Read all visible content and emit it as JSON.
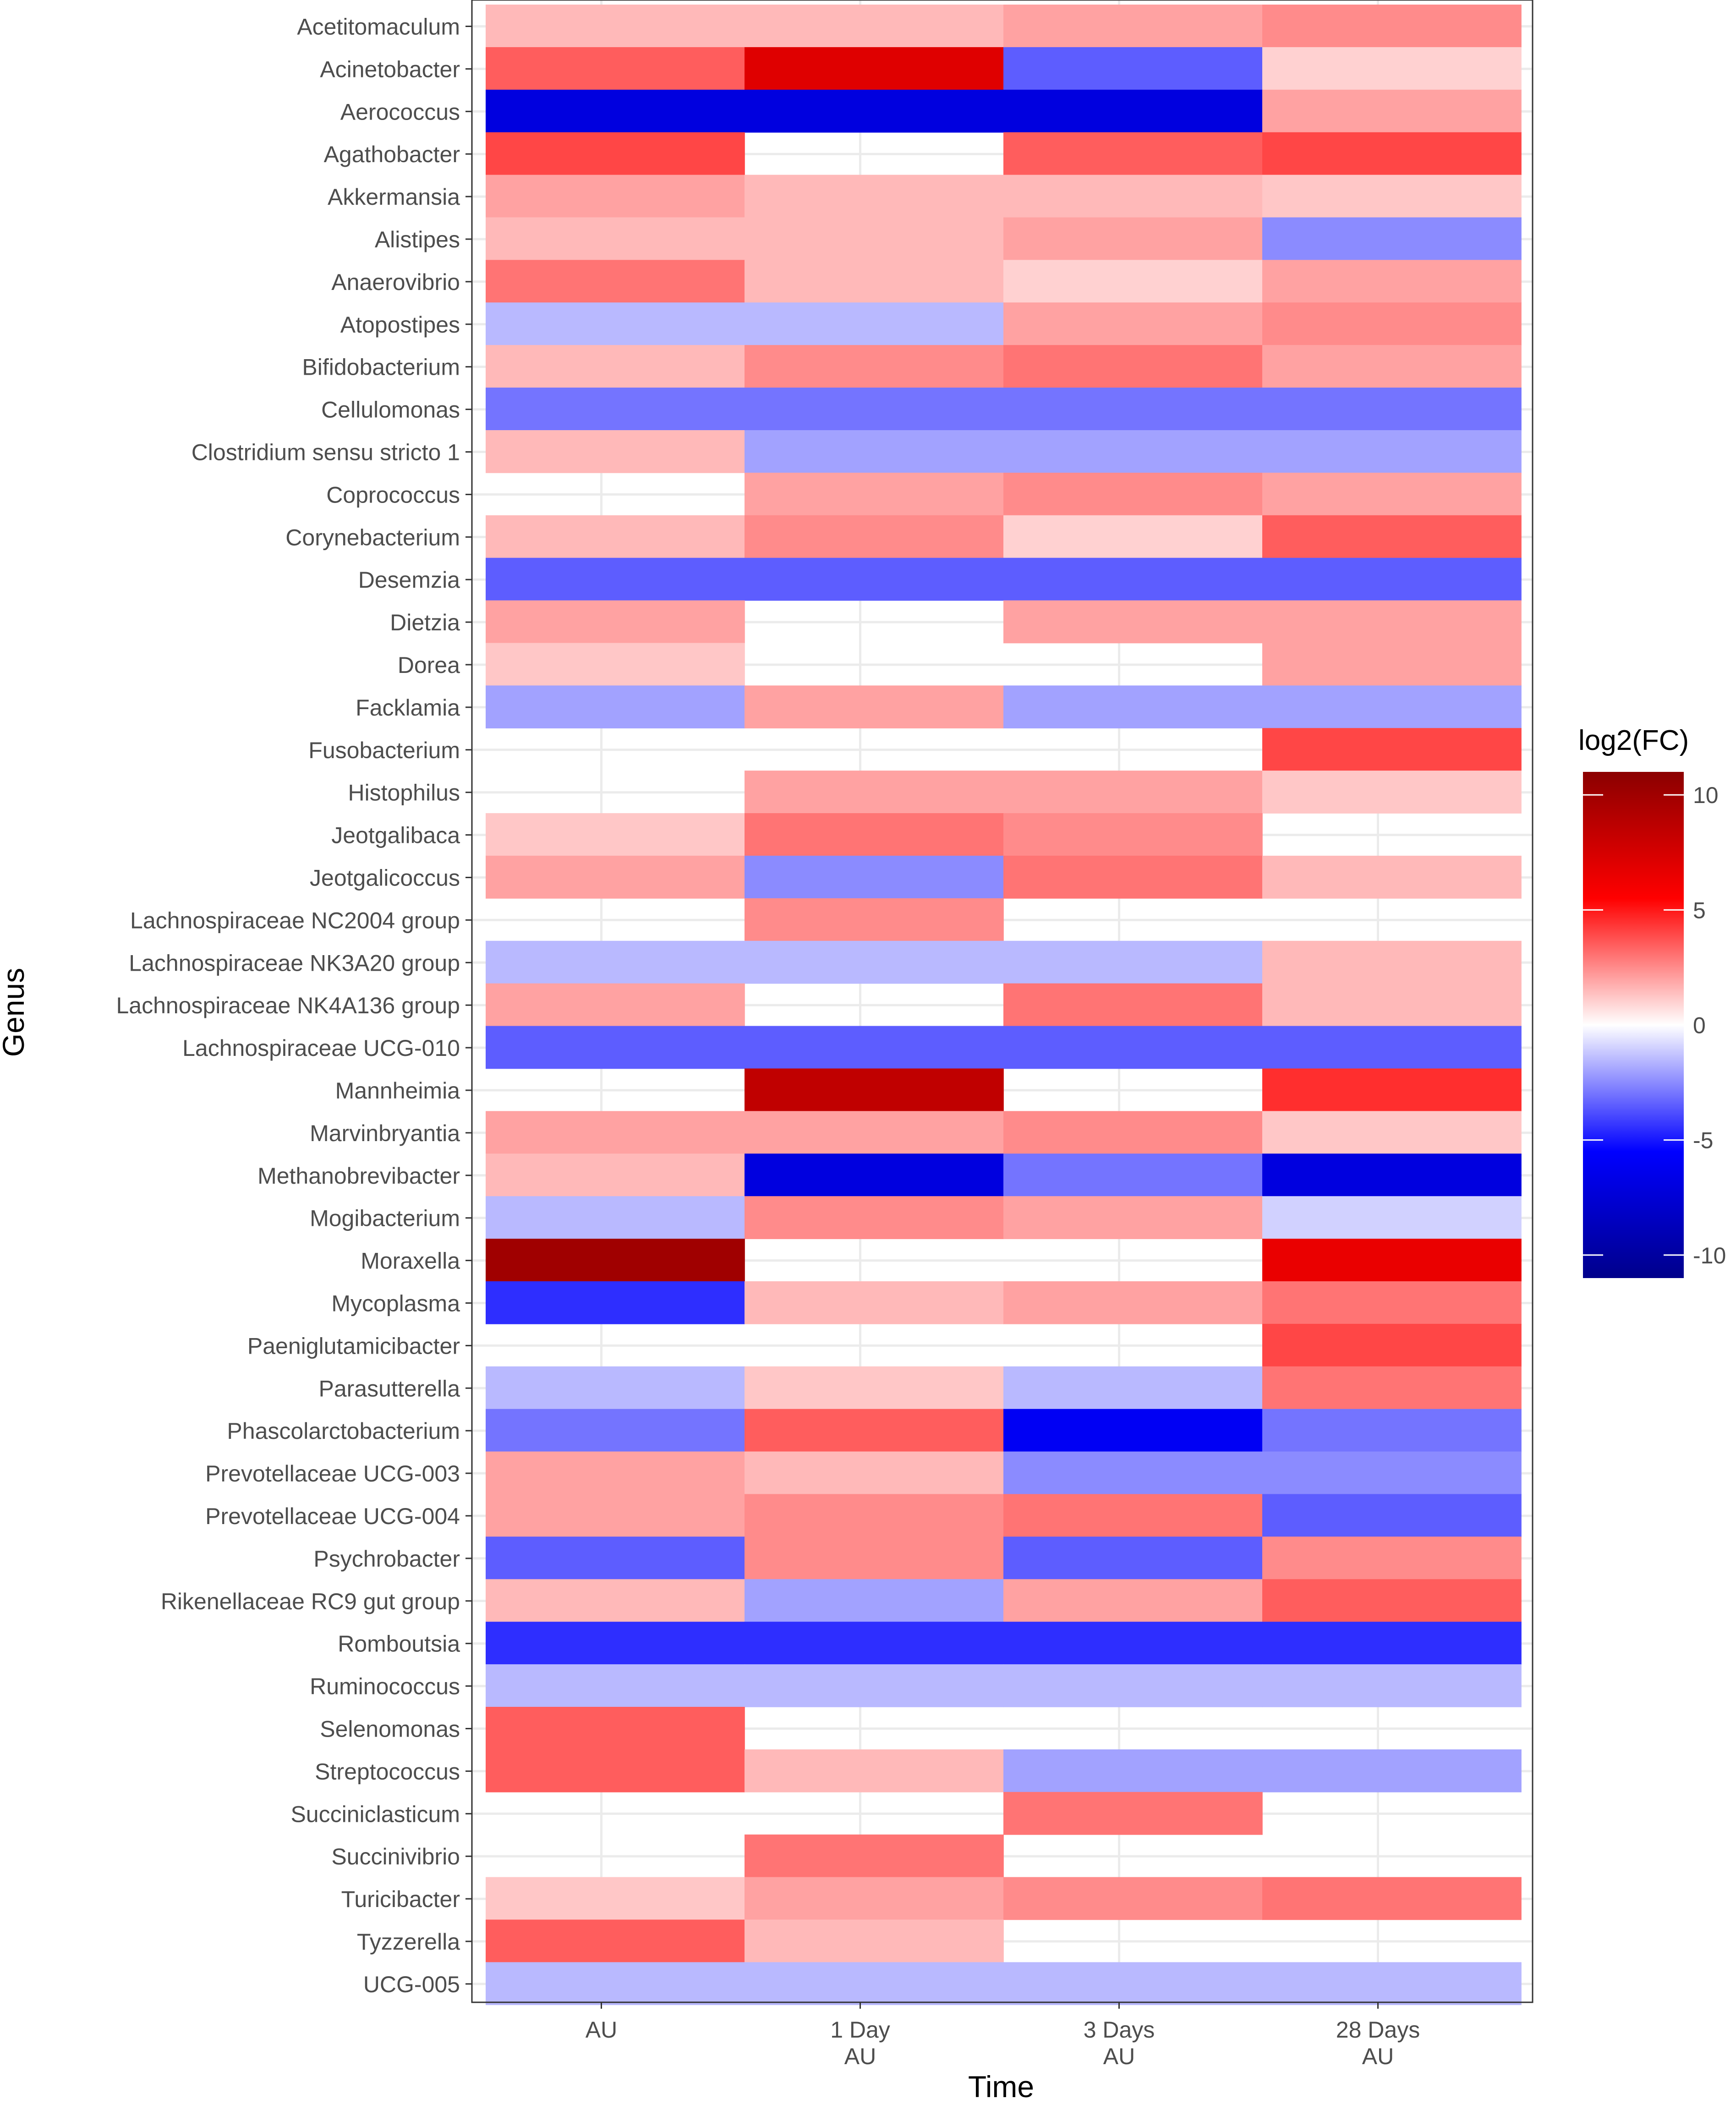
{
  "chart_data": {
    "type": "heatmap",
    "title": "",
    "xlabel": "Time",
    "ylabel": "Genus",
    "x_categories": [
      [
        "AU"
      ],
      [
        "1 Day",
        "AU"
      ],
      [
        "3 Days",
        "AU"
      ],
      [
        "28 Days",
        "AU"
      ]
    ],
    "y_categories": [
      "Acetitomaculum",
      "Acinetobacter",
      "Aerococcus",
      "Agathobacter",
      "Akkermansia",
      "Alistipes",
      "Anaerovibrio",
      "Atopostipes",
      "Bifidobacterium",
      "Cellulomonas",
      "Clostridium sensu stricto 1",
      "Coprococcus",
      "Corynebacterium",
      "Desemzia",
      "Dietzia",
      "Dorea",
      "Facklamia",
      "Fusobacterium",
      "Histophilus",
      "Jeotgalibaca",
      "Jeotgalicoccus",
      "Lachnospiraceae NC2004 group",
      "Lachnospiraceae NK3A20 group",
      "Lachnospiraceae NK4A136 group",
      "Lachnospiraceae UCG-010",
      "Mannheimia",
      "Marvinbryantia",
      "Methanobrevibacter",
      "Mogibacterium",
      "Moraxella",
      "Mycoplasma",
      "Paeniglutamicibacter",
      "Parasutterella",
      "Phascolarctobacterium",
      "Prevotellaceae UCG-003",
      "Prevotellaceae UCG-004",
      "Psychrobacter",
      "Rikenellaceae RC9 gut group",
      "Romboutsia",
      "Ruminococcus",
      "Selenomonas",
      "Streptococcus",
      "Succiniclasticum",
      "Succinivibrio",
      "Turicibacter",
      "Tyzzerella",
      "UCG-005"
    ],
    "values": [
      [
        1.5,
        1.5,
        2.0,
        2.5
      ],
      [
        3.5,
        7.0,
        -3.5,
        1.0
      ],
      [
        -7.0,
        -7.0,
        -7.0,
        2.0
      ],
      [
        4.0,
        null,
        3.5,
        4.0
      ],
      [
        2.0,
        1.5,
        1.5,
        1.2
      ],
      [
        1.5,
        1.5,
        2.0,
        -2.5
      ],
      [
        3.0,
        1.5,
        1.0,
        2.0
      ],
      [
        -1.5,
        -1.5,
        2.0,
        2.5
      ],
      [
        1.5,
        2.5,
        3.0,
        2.0
      ],
      [
        -3.0,
        -3.0,
        -3.0,
        -3.0
      ],
      [
        1.5,
        -2.0,
        -2.0,
        -2.0
      ],
      [
        null,
        2.0,
        2.5,
        2.0
      ],
      [
        1.5,
        2.5,
        1.0,
        3.5
      ],
      [
        -3.5,
        -3.5,
        -3.5,
        -3.5
      ],
      [
        2.0,
        null,
        2.0,
        2.0
      ],
      [
        1.2,
        null,
        null,
        2.0
      ],
      [
        -2.0,
        2.0,
        -2.0,
        -2.0
      ],
      [
        null,
        null,
        null,
        4.0
      ],
      [
        null,
        2.0,
        2.0,
        1.2
      ],
      [
        1.2,
        3.0,
        2.5,
        null
      ],
      [
        2.0,
        -2.5,
        3.0,
        1.5
      ],
      [
        null,
        2.5,
        null,
        null
      ],
      [
        -1.5,
        -1.5,
        -1.5,
        1.5
      ],
      [
        2.0,
        null,
        3.0,
        1.5
      ],
      [
        -3.5,
        -3.5,
        -3.5,
        -3.5
      ],
      [
        null,
        8.5,
        null,
        4.5
      ],
      [
        2.0,
        2.0,
        2.5,
        1.2
      ],
      [
        1.5,
        -7.0,
        -3.0,
        -7.0
      ],
      [
        -1.5,
        2.5,
        2.0,
        -1.0
      ],
      [
        10.0,
        null,
        null,
        6.5
      ],
      [
        -4.5,
        1.5,
        2.0,
        3.0
      ],
      [
        null,
        null,
        null,
        4.0
      ],
      [
        -1.5,
        1.2,
        -1.5,
        3.0
      ],
      [
        -3.0,
        3.5,
        -6.0,
        -3.0
      ],
      [
        2.0,
        1.5,
        -2.5,
        -2.5
      ],
      [
        2.0,
        2.5,
        3.0,
        -3.5
      ],
      [
        -3.5,
        2.5,
        -3.5,
        2.5
      ],
      [
        1.5,
        -2.0,
        2.0,
        3.5
      ],
      [
        -4.5,
        -4.5,
        -4.5,
        -4.5
      ],
      [
        -1.5,
        -1.5,
        -1.5,
        -1.5
      ],
      [
        3.5,
        null,
        null,
        null
      ],
      [
        3.5,
        1.5,
        -2.0,
        -2.0
      ],
      [
        null,
        null,
        3.0,
        null
      ],
      [
        null,
        3.0,
        null,
        null
      ],
      [
        1.2,
        2.0,
        2.5,
        3.0
      ],
      [
        3.5,
        1.5,
        null,
        null
      ],
      [
        -1.5,
        -1.5,
        -1.5,
        -1.5
      ]
    ],
    "legend": {
      "title": "log2(FC)",
      "position": "right",
      "ticks": [
        10,
        5,
        0,
        -5,
        -10
      ],
      "range": [
        -11,
        11
      ],
      "colors": {
        "low": "#00008B",
        "mid_low": "#0000FF",
        "mid": "#FFFFFF",
        "mid_high": "#FF0000",
        "high": "#8B0000"
      }
    },
    "grid": true
  }
}
